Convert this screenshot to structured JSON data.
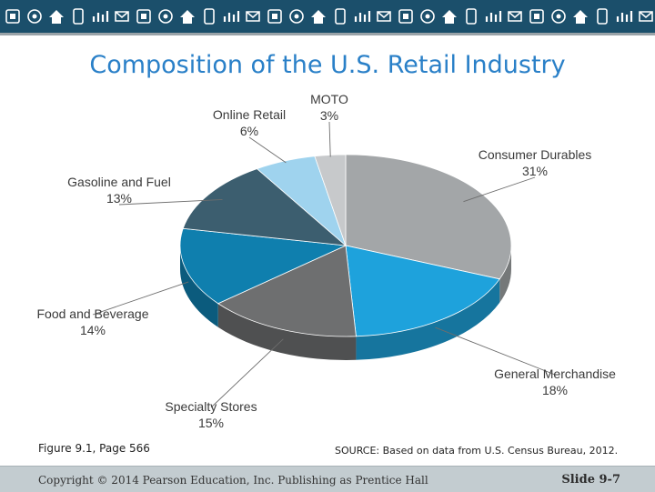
{
  "header": {
    "title": "Composition of the U.S. Retail Industry",
    "banner_icons": [
      "building-icon",
      "tablet-icon",
      "gear-icon",
      "house-icon",
      "wifi-icon",
      "cart-icon",
      "at-icon",
      "phone-icon",
      "chart-icon",
      "globe-icon",
      "mail-icon",
      "cloud-icon"
    ]
  },
  "chart_data": {
    "type": "pie",
    "title": "",
    "slices": [
      {
        "label": "Consumer Durables",
        "value": 31,
        "pct_label": "31%",
        "color": "#a3a6a8"
      },
      {
        "label": "General Merchandise",
        "value": 18,
        "pct_label": "18%",
        "color": "#1ea2dc"
      },
      {
        "label": "Specialty Stores",
        "value": 15,
        "pct_label": "15%",
        "color": "#6e6f70"
      },
      {
        "label": "Food and Beverage",
        "value": 14,
        "pct_label": "14%",
        "color": "#0f7fae"
      },
      {
        "label": "Gasoline and Fuel",
        "value": 13,
        "pct_label": "13%",
        "color": "#3c5e6f"
      },
      {
        "label": "Online Retail",
        "value": 6,
        "pct_label": "6%",
        "color": "#9fd3ee"
      },
      {
        "label": "MOTO",
        "value": 3,
        "pct_label": "3%",
        "color": "#c7c9cb"
      }
    ]
  },
  "notes": {
    "figure": "Figure 9.1, Page 566",
    "source": "SOURCE: Based on data from U.S. Census Bureau, 2012."
  },
  "footer": {
    "copyright": "Copyright © 2014 Pearson Education, Inc. Publishing as Prentice Hall",
    "slide": "Slide 9-7"
  }
}
